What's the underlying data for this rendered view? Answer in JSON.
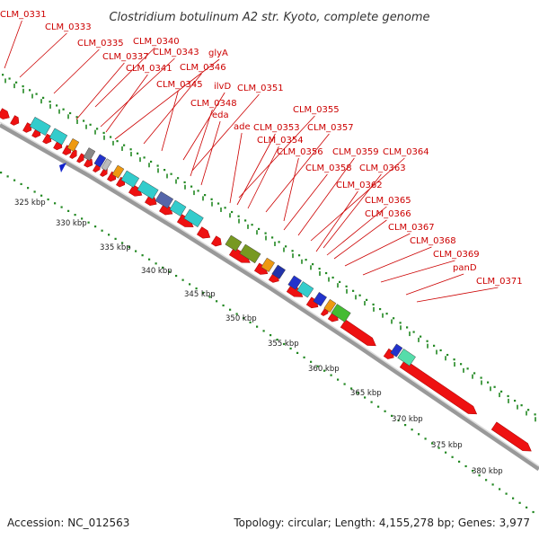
{
  "title": "Clostridium botulinum A2 str. Kyoto, complete genome",
  "footer": {
    "accession": "Accession: NC_012563",
    "genome_info": "Topology: circular; Length: 4,155,278 bp; Genes: 3,977"
  },
  "colors": {
    "gene_forward": "#ee1111",
    "label": "#cc0000",
    "gc_skew": "#228822",
    "backbone": "#999999",
    "feature_cyan": "#33cccc",
    "feature_blue": "#2233cc",
    "feature_olive": "#779922",
    "feature_orange": "#ee9911",
    "feature_green": "#44bb33"
  },
  "gene_labels": [
    "CLM_0331",
    "CLM_0333",
    "CLM_0335",
    "CLM_0340",
    "CLM_0337",
    "CLM_0343",
    "glyA",
    "CLM_0341",
    "CLM_0346",
    "CLM_0345",
    "ilvD",
    "CLM_0351",
    "CLM_0348",
    "eda",
    "CLM_0355",
    "ade",
    "CLM_0353",
    "CLM_0357",
    "CLM_0354",
    "CLM_0356",
    "CLM_0359",
    "CLM_0364",
    "CLM_0358",
    "CLM_0363",
    "CLM_0362",
    "CLM_0365",
    "CLM_0366",
    "CLM_0367",
    "CLM_0368",
    "CLM_0369",
    "panD",
    "CLM_0371"
  ],
  "scale_ticks": [
    "325 kbp",
    "330 kbp",
    "335 kbp",
    "340 kbp",
    "345 kbp",
    "350 kbp",
    "355 kbp",
    "360 kbp",
    "365 kbp",
    "370 kbp",
    "375 kbp",
    "380 kbp"
  ]
}
